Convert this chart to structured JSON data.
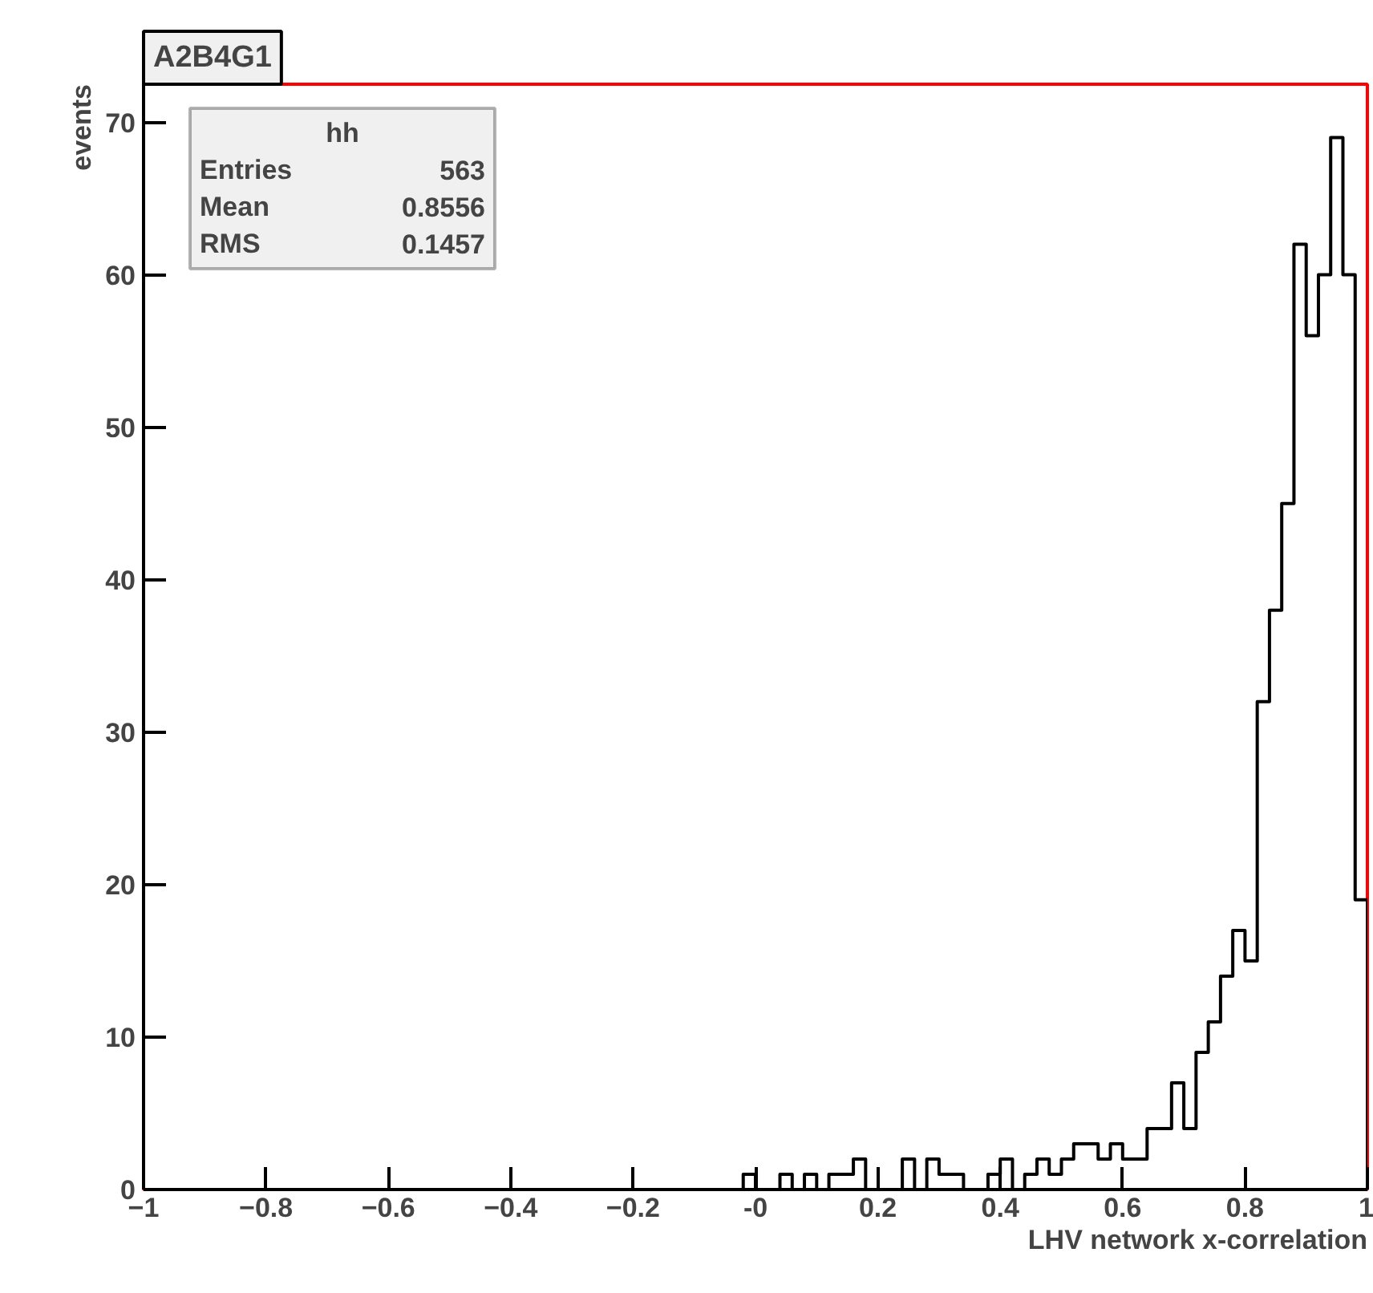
{
  "chart_data": {
    "type": "histogram",
    "title": "A2B4G1",
    "xlabel": "LHV network x-correlation",
    "ylabel": "events",
    "annotations": [
      "hh",
      "Entries 563",
      "Mean 0.8556",
      "RMS 0.1457"
    ],
    "bins": [
      -1,
      -0.98,
      -0.96,
      -0.94,
      -0.92,
      -0.9,
      -0.88,
      -0.86,
      -0.84,
      -0.82,
      -0.8,
      -0.78,
      -0.76,
      -0.74,
      -0.72,
      -0.7,
      -0.68,
      -0.66,
      -0.64,
      -0.62,
      -0.6,
      -0.58,
      -0.56,
      -0.54,
      -0.52,
      -0.5,
      -0.48,
      -0.46,
      -0.44,
      -0.42,
      -0.4,
      -0.38,
      -0.36,
      -0.34,
      -0.32,
      -0.3,
      -0.28,
      -0.26,
      -0.24,
      -0.22,
      -0.2,
      -0.18,
      -0.16,
      -0.14,
      -0.12,
      -0.1,
      -0.08,
      -0.06,
      -0.04,
      -0.02,
      0,
      0.02,
      0.04,
      0.06,
      0.08,
      0.1,
      0.12,
      0.14,
      0.16,
      0.18,
      0.2,
      0.22,
      0.24,
      0.26,
      0.28,
      0.3,
      0.32,
      0.34,
      0.36,
      0.38,
      0.4,
      0.42,
      0.44,
      0.46,
      0.48,
      0.5,
      0.52,
      0.54,
      0.56,
      0.58,
      0.6,
      0.62,
      0.64,
      0.66,
      0.68,
      0.7,
      0.72,
      0.74,
      0.76,
      0.78,
      0.8,
      0.82,
      0.84,
      0.86,
      0.88,
      0.9,
      0.92,
      0.94,
      0.96,
      0.98,
      1
    ],
    "values": [
      0,
      0,
      0,
      0,
      0,
      0,
      0,
      0,
      0,
      0,
      0,
      0,
      0,
      0,
      0,
      0,
      0,
      0,
      0,
      0,
      0,
      0,
      0,
      0,
      0,
      0,
      0,
      0,
      0,
      0,
      0,
      0,
      0,
      0,
      0,
      0,
      0,
      0,
      0,
      0,
      0,
      0,
      0,
      0,
      0,
      0,
      0,
      0,
      0,
      1,
      0,
      0,
      1,
      0,
      1,
      0,
      1,
      1,
      2,
      0,
      0,
      0,
      2,
      0,
      2,
      1,
      1,
      0,
      0,
      1,
      2,
      0,
      1,
      2,
      1,
      2,
      3,
      3,
      2,
      3,
      2,
      2,
      4,
      4,
      7,
      4,
      9,
      11,
      14,
      17,
      15,
      32,
      38,
      45,
      62,
      56,
      60,
      69,
      60,
      19
    ],
    "color": "#000000",
    "xlim": [
      -1,
      1
    ],
    "ylim": [
      0,
      72.5
    ],
    "xticks": [
      -1,
      -0.8,
      -0.6,
      -0.4,
      -0.2,
      {
        "value": 0,
        "label": "-0"
      },
      0.2,
      0.4,
      0.6,
      0.8,
      1
    ],
    "yticks": [
      0,
      10,
      20,
      30,
      40,
      50,
      60,
      70
    ],
    "grid": false
  }
}
